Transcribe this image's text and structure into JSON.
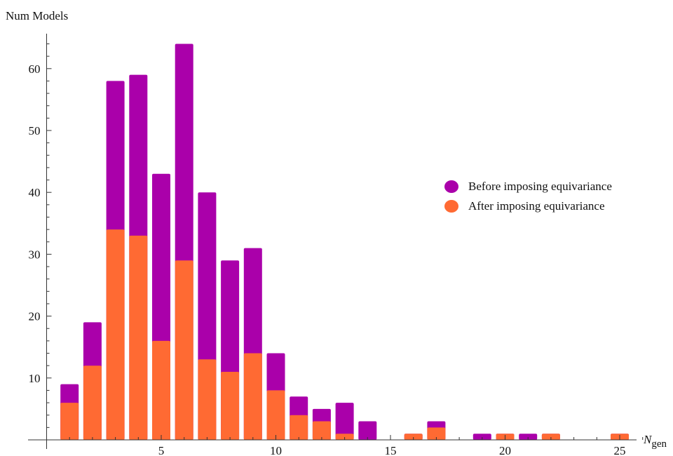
{
  "chart_data": {
    "type": "bar",
    "title": "",
    "ylabel": "Num Models",
    "xlabel_main": "N",
    "xlabel_sub": "gen",
    "xlim": [
      0,
      26
    ],
    "ylim": [
      0,
      65
    ],
    "x_ticks": [
      5,
      10,
      15,
      20,
      25
    ],
    "y_ticks": [
      10,
      20,
      30,
      40,
      50,
      60
    ],
    "legend_position": "right",
    "x": [
      1,
      2,
      3,
      4,
      5,
      6,
      7,
      8,
      9,
      10,
      11,
      12,
      13,
      14,
      16,
      17,
      19,
      20,
      21,
      22,
      25
    ],
    "series": [
      {
        "name": "Before imposing equivariance",
        "color": "#aa00aa",
        "values": [
          9,
          19,
          58,
          59,
          43,
          64,
          40,
          29,
          31,
          14,
          7,
          5,
          6,
          3,
          1,
          3,
          1,
          1,
          1,
          1,
          1
        ]
      },
      {
        "name": "After imposing equivariance",
        "color": "#ff6a33",
        "values": [
          6,
          12,
          34,
          33,
          16,
          29,
          13,
          11,
          14,
          8,
          4,
          3,
          1,
          0,
          1,
          2,
          0,
          1,
          0,
          1,
          1
        ]
      }
    ]
  }
}
